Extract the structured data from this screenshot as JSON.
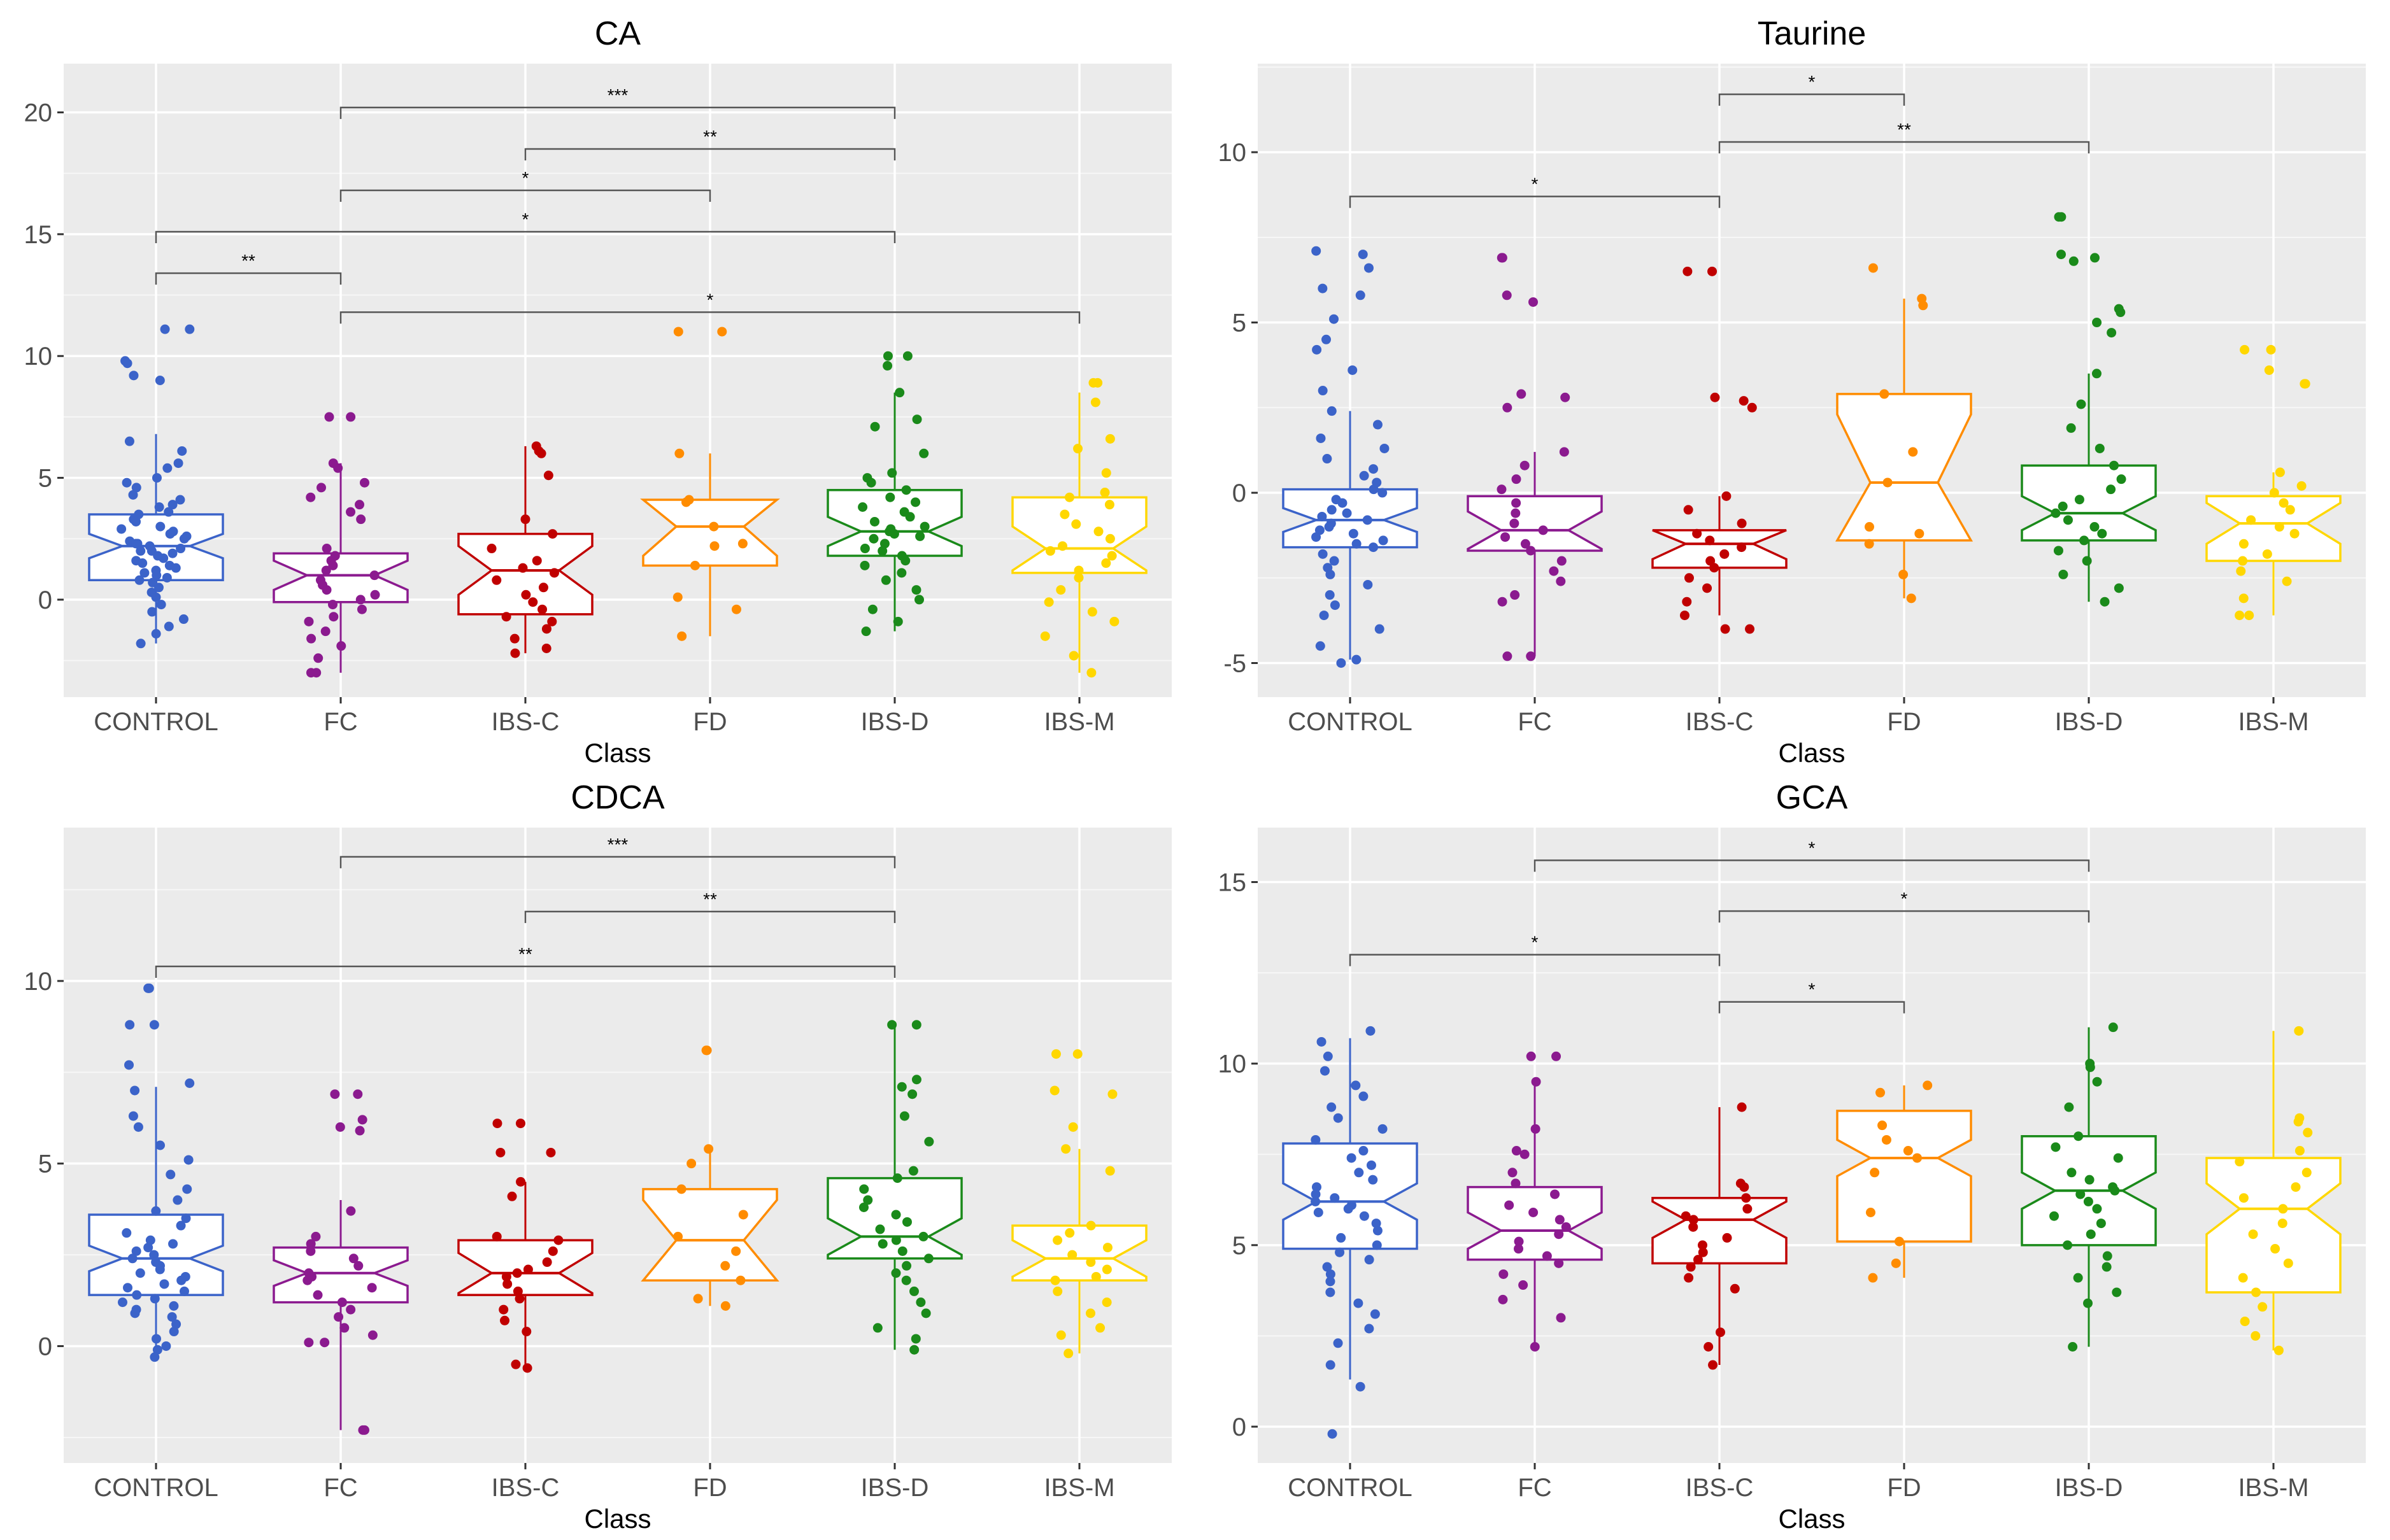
{
  "chart_data": [
    {
      "type": "box",
      "title": "CA",
      "xlabel": "Class",
      "ylabel": "",
      "categories": [
        "CONTROL",
        "FC",
        "IBS-C",
        "FD",
        "IBS-D",
        "IBS-M"
      ],
      "ylim": [
        -4,
        22
      ],
      "yticks": [
        0,
        5,
        10,
        15,
        20
      ],
      "yticks_labels": [
        "0",
        "5",
        "10",
        "15",
        "20"
      ],
      "grid": true,
      "colors": [
        "#3b63c9",
        "#8b1a8f",
        "#c00000",
        "#ff8c00",
        "#1a8a1a",
        "#ffd700"
      ],
      "boxes": [
        {
          "class": "CONTROL",
          "whisker_low": -1.8,
          "q1": 0.8,
          "median": 2.2,
          "q3": 3.5,
          "whisker_high": 6.8,
          "notch": 0.5
        },
        {
          "class": "FC",
          "whisker_low": -3.0,
          "q1": -0.1,
          "median": 1.0,
          "q3": 1.9,
          "whisker_high": 5.6,
          "notch": 0.6
        },
        {
          "class": "IBS-C",
          "whisker_low": -2.2,
          "q1": -0.6,
          "median": 1.2,
          "q3": 2.7,
          "whisker_high": 6.3,
          "notch": 1.0
        },
        {
          "class": "FD",
          "whisker_low": -1.5,
          "q1": 1.4,
          "median": 3.0,
          "q3": 4.1,
          "whisker_high": 6.0,
          "notch": 1.2
        },
        {
          "class": "IBS-D",
          "whisker_low": -1.3,
          "q1": 1.8,
          "median": 2.8,
          "q3": 4.5,
          "whisker_high": 8.5,
          "notch": 0.6
        },
        {
          "class": "IBS-M",
          "whisker_low": -3.0,
          "q1": 1.1,
          "median": 2.1,
          "q3": 4.2,
          "whisker_high": 8.5,
          "notch": 0.9
        }
      ],
      "points": [
        [
          11.1,
          11.1,
          9.8,
          9.7,
          9.2,
          9.0,
          6.5,
          6.1,
          5.6,
          5.4,
          5.0,
          4.8,
          4.6,
          4.3,
          4.1,
          3.9,
          3.8,
          3.6,
          3.5,
          3.3,
          3.2,
          3.0,
          2.9,
          2.8,
          2.7,
          2.6,
          2.5,
          2.4,
          2.3,
          2.3,
          2.2,
          2.1,
          2.0,
          2.0,
          1.9,
          1.8,
          1.7,
          1.6,
          1.5,
          1.4,
          1.3,
          1.2,
          1.1,
          1.0,
          0.9,
          0.8,
          0.7,
          0.5,
          0.3,
          0.1,
          -0.2,
          -0.5,
          -0.8,
          -1.1,
          -1.4,
          -1.8
        ],
        [
          7.5,
          7.5,
          5.6,
          5.4,
          4.8,
          4.6,
          4.2,
          3.9,
          3.6,
          3.3,
          2.1,
          1.8,
          1.6,
          1.4,
          1.2,
          1.0,
          0.8,
          0.6,
          0.4,
          0.2,
          0.0,
          -0.2,
          -0.4,
          -0.7,
          -0.9,
          -1.3,
          -1.6,
          -1.9,
          -2.4,
          -3.0,
          -3.0
        ],
        [
          6.3,
          6.1,
          6.0,
          5.1,
          3.3,
          2.7,
          2.1,
          1.6,
          1.3,
          1.1,
          0.8,
          0.5,
          0.2,
          -0.1,
          -0.4,
          -0.7,
          -0.9,
          -1.2,
          -1.6,
          -2.0,
          -2.2
        ],
        [
          11.0,
          11.0,
          6.0,
          4.1,
          4.0,
          3.0,
          2.3,
          2.2,
          1.4,
          0.1,
          -0.4,
          -1.5
        ],
        [
          10.0,
          10.0,
          9.6,
          8.5,
          7.4,
          7.1,
          6.0,
          5.2,
          5.0,
          4.8,
          4.5,
          4.2,
          4.0,
          3.8,
          3.6,
          3.4,
          3.2,
          3.0,
          2.9,
          2.8,
          2.7,
          2.6,
          2.5,
          2.3,
          2.1,
          2.0,
          1.8,
          1.6,
          1.4,
          1.1,
          0.8,
          0.4,
          0.0,
          -0.4,
          -0.9,
          -1.3
        ],
        [
          8.9,
          8.9,
          8.1,
          6.6,
          6.2,
          5.2,
          4.4,
          4.2,
          3.9,
          3.5,
          3.1,
          2.8,
          2.5,
          2.2,
          2.0,
          1.8,
          1.5,
          1.2,
          0.9,
          0.4,
          -0.1,
          -0.5,
          -0.9,
          -1.5,
          -2.3,
          -3.0
        ]
      ],
      "brackets": [
        {
          "from": "FC",
          "to": "IBS-D",
          "y": 20.2,
          "label": "***"
        },
        {
          "from": "IBS-C",
          "to": "IBS-D",
          "y": 18.5,
          "label": "**"
        },
        {
          "from": "FC",
          "to": "FD",
          "y": 16.8,
          "label": "*"
        },
        {
          "from": "CONTROL",
          "to": "IBS-D",
          "y": 15.1,
          "label": "*"
        },
        {
          "from": "CONTROL",
          "to": "FC",
          "y": 13.4,
          "label": "**"
        },
        {
          "from": "FC",
          "to": "IBS-M",
          "y": 11.8,
          "label": "*"
        }
      ]
    },
    {
      "type": "box",
      "title": "Taurine",
      "xlabel": "Class",
      "ylabel": "",
      "categories": [
        "CONTROL",
        "FC",
        "IBS-C",
        "FD",
        "IBS-D",
        "IBS-M"
      ],
      "ylim": [
        -6,
        12.6
      ],
      "yticks": [
        -5,
        0,
        5,
        10
      ],
      "yticks_labels": [
        "-5",
        "0",
        "5",
        "10"
      ],
      "grid": true,
      "colors": [
        "#3b63c9",
        "#8b1a8f",
        "#c00000",
        "#ff8c00",
        "#1a8a1a",
        "#ffd700"
      ],
      "boxes": [
        {
          "class": "CONTROL",
          "whisker_low": -4.9,
          "q1": -1.6,
          "median": -0.8,
          "q3": 0.1,
          "whisker_high": 2.4,
          "notch": 0.35
        },
        {
          "class": "FC",
          "whisker_low": -4.8,
          "q1": -1.7,
          "median": -1.1,
          "q3": -0.1,
          "whisker_high": 1.2,
          "notch": 0.55
        },
        {
          "class": "IBS-C",
          "whisker_low": -3.6,
          "q1": -2.2,
          "median": -1.5,
          "q3": -1.1,
          "whisker_high": -0.1,
          "notch": 0.45
        },
        {
          "class": "FD",
          "whisker_low": -3.1,
          "q1": -1.4,
          "median": 0.3,
          "q3": 2.9,
          "whisker_high": 5.7,
          "notch": 2.0
        },
        {
          "class": "IBS-D",
          "whisker_low": -3.2,
          "q1": -1.4,
          "median": -0.6,
          "q3": 0.8,
          "whisker_high": 3.5,
          "notch": 0.5
        },
        {
          "class": "IBS-M",
          "whisker_low": -3.6,
          "q1": -2.0,
          "median": -0.9,
          "q3": -0.1,
          "whisker_high": 0.6,
          "notch": 0.6
        }
      ],
      "points": [
        [
          7.1,
          7.0,
          6.6,
          6.0,
          5.8,
          5.1,
          4.5,
          4.2,
          3.6,
          3.0,
          2.4,
          2.0,
          1.6,
          1.3,
          1.0,
          0.7,
          0.5,
          0.3,
          0.1,
          0.0,
          -0.2,
          -0.3,
          -0.5,
          -0.6,
          -0.7,
          -0.8,
          -0.9,
          -1.0,
          -1.1,
          -1.2,
          -1.3,
          -1.4,
          -1.5,
          -1.6,
          -1.8,
          -2.0,
          -2.2,
          -2.4,
          -2.7,
          -3.0,
          -3.3,
          -3.6,
          -4.0,
          -4.5,
          -4.9,
          -5.0
        ],
        [
          6.9,
          6.9,
          5.8,
          5.6,
          2.9,
          2.8,
          2.5,
          1.2,
          0.8,
          0.4,
          0.1,
          -0.3,
          -0.6,
          -0.9,
          -1.1,
          -1.3,
          -1.5,
          -1.7,
          -2.0,
          -2.3,
          -2.6,
          -3.0,
          -3.2,
          -4.8,
          -4.8
        ],
        [
          6.5,
          6.5,
          2.8,
          2.7,
          2.5,
          -0.1,
          -0.5,
          -0.9,
          -1.2,
          -1.4,
          -1.6,
          -1.8,
          -2.0,
          -2.2,
          -2.5,
          -2.8,
          -3.2,
          -3.6,
          -4.0,
          -4.0
        ],
        [
          6.6,
          5.7,
          5.5,
          2.9,
          1.2,
          0.3,
          -1.0,
          -1.2,
          -1.5,
          -2.4,
          -3.1
        ],
        [
          8.1,
          8.1,
          7.0,
          6.9,
          6.8,
          5.4,
          5.3,
          5.0,
          4.7,
          3.5,
          2.6,
          1.9,
          1.3,
          0.8,
          0.4,
          0.1,
          -0.2,
          -0.4,
          -0.6,
          -0.8,
          -1.0,
          -1.2,
          -1.4,
          -1.7,
          -2.0,
          -2.4,
          -2.8,
          -3.2
        ],
        [
          4.2,
          4.2,
          3.6,
          3.2,
          3.2,
          0.6,
          0.2,
          0.0,
          -0.3,
          -0.5,
          -0.8,
          -1.0,
          -1.2,
          -1.5,
          -1.8,
          -2.0,
          -2.3,
          -2.6,
          -3.1,
          -3.6,
          -3.6
        ]
      ],
      "brackets": [
        {
          "from": "IBS-C",
          "to": "FD",
          "y": 11.7,
          "label": "*"
        },
        {
          "from": "IBS-C",
          "to": "IBS-D",
          "y": 10.3,
          "label": "**"
        },
        {
          "from": "CONTROL",
          "to": "IBS-C",
          "y": 8.7,
          "label": "*"
        }
      ]
    },
    {
      "type": "box",
      "title": "CDCA",
      "xlabel": "Class",
      "ylabel": "",
      "categories": [
        "CONTROL",
        "FC",
        "IBS-C",
        "FD",
        "IBS-D",
        "IBS-M"
      ],
      "ylim": [
        -3.2,
        14.2
      ],
      "yticks": [
        0,
        5,
        10
      ],
      "yticks_labels": [
        "0",
        "5",
        "10"
      ],
      "grid": true,
      "colors": [
        "#3b63c9",
        "#8b1a8f",
        "#c00000",
        "#ff8c00",
        "#1a8a1a",
        "#ffd700"
      ],
      "boxes": [
        {
          "class": "CONTROL",
          "whisker_low": -0.3,
          "q1": 1.4,
          "median": 2.4,
          "q3": 3.6,
          "whisker_high": 7.1,
          "notch": 0.35
        },
        {
          "class": "FC",
          "whisker_low": -2.3,
          "q1": 1.2,
          "median": 2.0,
          "q3": 2.7,
          "whisker_high": 4.0,
          "notch": 0.35
        },
        {
          "class": "IBS-C",
          "whisker_low": -0.6,
          "q1": 1.4,
          "median": 2.0,
          "q3": 2.9,
          "whisker_high": 4.5,
          "notch": 0.55
        },
        {
          "class": "FD",
          "whisker_low": 1.1,
          "q1": 1.8,
          "median": 2.9,
          "q3": 4.3,
          "whisker_high": 5.4,
          "notch": 1.1
        },
        {
          "class": "IBS-D",
          "whisker_low": -0.1,
          "q1": 2.4,
          "median": 3.0,
          "q3": 4.6,
          "whisker_high": 8.8,
          "notch": 0.5
        },
        {
          "class": "IBS-M",
          "whisker_low": -0.2,
          "q1": 1.8,
          "median": 2.4,
          "q3": 3.3,
          "whisker_high": 5.4,
          "notch": 0.5
        }
      ],
      "points": [
        [
          9.8,
          9.8,
          8.8,
          8.8,
          7.7,
          7.2,
          7.0,
          6.3,
          6.0,
          5.5,
          5.1,
          4.7,
          4.3,
          4.0,
          3.7,
          3.5,
          3.3,
          3.1,
          2.9,
          2.8,
          2.7,
          2.6,
          2.5,
          2.4,
          2.3,
          2.2,
          2.1,
          2.0,
          1.9,
          1.8,
          1.7,
          1.6,
          1.5,
          1.4,
          1.3,
          1.2,
          1.1,
          1.0,
          0.9,
          0.8,
          0.6,
          0.4,
          0.2,
          0.0,
          -0.1,
          -0.3
        ],
        [
          6.9,
          6.9,
          6.2,
          6.0,
          5.9,
          3.7,
          3.0,
          2.8,
          2.6,
          2.4,
          2.2,
          2.0,
          1.9,
          1.8,
          1.6,
          1.4,
          1.2,
          1.0,
          0.8,
          0.5,
          0.3,
          0.1,
          0.1,
          -2.3,
          -2.3
        ],
        [
          6.1,
          6.1,
          5.3,
          5.3,
          4.5,
          4.1,
          3.0,
          2.9,
          2.6,
          2.3,
          2.1,
          2.0,
          1.9,
          1.7,
          1.5,
          1.3,
          1.0,
          0.7,
          0.4,
          -0.5,
          -0.6
        ],
        [
          8.1,
          8.1,
          5.4,
          5.0,
          4.3,
          3.6,
          3.0,
          2.6,
          2.2,
          1.8,
          1.3,
          1.1
        ],
        [
          8.8,
          8.8,
          7.3,
          7.1,
          6.9,
          6.3,
          5.6,
          4.8,
          4.6,
          4.3,
          4.0,
          3.8,
          3.6,
          3.4,
          3.2,
          3.0,
          2.9,
          2.8,
          2.6,
          2.4,
          2.2,
          2.0,
          1.8,
          1.5,
          1.2,
          0.9,
          0.5,
          0.2,
          -0.1
        ],
        [
          8.0,
          8.0,
          7.0,
          6.9,
          6.0,
          5.4,
          4.8,
          3.3,
          3.1,
          2.9,
          2.7,
          2.5,
          2.3,
          2.1,
          1.9,
          1.8,
          1.5,
          1.2,
          0.9,
          0.5,
          0.3,
          -0.2
        ]
      ],
      "brackets": [
        {
          "from": "FC",
          "to": "IBS-D",
          "y": 13.4,
          "label": "***"
        },
        {
          "from": "IBS-C",
          "to": "IBS-D",
          "y": 11.9,
          "label": "**"
        },
        {
          "from": "CONTROL",
          "to": "IBS-D",
          "y": 10.4,
          "label": "**"
        }
      ]
    },
    {
      "type": "box",
      "title": "GCA",
      "xlabel": "Class",
      "ylabel": "",
      "categories": [
        "CONTROL",
        "FC",
        "IBS-C",
        "FD",
        "IBS-D",
        "IBS-M"
      ],
      "ylim": [
        -1.0,
        16.5
      ],
      "yticks": [
        0,
        5,
        10,
        15
      ],
      "yticks_labels": [
        "0",
        "5",
        "10",
        "15"
      ],
      "grid": true,
      "colors": [
        "#3b63c9",
        "#8b1a8f",
        "#c00000",
        "#ff8c00",
        "#1a8a1a",
        "#ffd700"
      ],
      "boxes": [
        {
          "class": "CONTROL",
          "whisker_low": 1.3,
          "q1": 4.9,
          "median": 6.2,
          "q3": 7.8,
          "whisker_high": 10.7,
          "notch": 0.5
        },
        {
          "class": "FC",
          "whisker_low": 2.2,
          "q1": 4.6,
          "median": 5.4,
          "q3": 6.6,
          "whisker_high": 9.5,
          "notch": 0.5
        },
        {
          "class": "IBS-C",
          "whisker_low": 1.7,
          "q1": 4.5,
          "median": 5.7,
          "q3": 6.3,
          "whisker_high": 8.8,
          "notch": 0.5
        },
        {
          "class": "FD",
          "whisker_low": 4.1,
          "q1": 5.1,
          "median": 7.4,
          "q3": 8.7,
          "whisker_high": 9.4,
          "notch": 0.5
        },
        {
          "class": "IBS-D",
          "whisker_low": 2.2,
          "q1": 5.0,
          "median": 6.5,
          "q3": 8.0,
          "whisker_high": 11.0,
          "notch": 0.5
        },
        {
          "class": "IBS-M",
          "whisker_low": 2.1,
          "q1": 3.7,
          "median": 6.0,
          "q3": 7.4,
          "whisker_high": 10.9,
          "notch": 0.7
        }
      ],
      "points": [
        [
          10.9,
          10.6,
          10.2,
          9.8,
          9.4,
          9.1,
          8.8,
          8.5,
          8.2,
          7.9,
          7.6,
          7.4,
          7.2,
          7.0,
          6.8,
          6.6,
          6.4,
          6.3,
          6.2,
          6.1,
          6.0,
          5.9,
          5.8,
          5.6,
          5.4,
          5.2,
          5.0,
          4.8,
          4.6,
          4.4,
          4.2,
          4.0,
          3.7,
          3.4,
          3.1,
          2.7,
          2.3,
          1.7,
          1.1,
          -0.2
        ],
        [
          10.2,
          10.2,
          9.5,
          8.2,
          7.6,
          7.5,
          7.0,
          6.7,
          6.4,
          6.1,
          5.9,
          5.7,
          5.5,
          5.3,
          5.1,
          4.9,
          4.7,
          4.5,
          4.2,
          3.9,
          3.5,
          3.0,
          2.2
        ],
        [
          8.8,
          6.7,
          6.6,
          6.3,
          6.0,
          5.8,
          5.7,
          5.5,
          5.2,
          5.0,
          4.8,
          4.6,
          4.4,
          4.1,
          3.8,
          2.6,
          2.2,
          1.7
        ],
        [
          9.4,
          9.2,
          8.3,
          7.9,
          7.6,
          7.4,
          7.0,
          5.9,
          5.1,
          4.5,
          4.1
        ],
        [
          11.0,
          10.0,
          9.9,
          9.5,
          8.8,
          8.0,
          7.7,
          7.4,
          7.0,
          6.8,
          6.6,
          6.5,
          6.4,
          6.2,
          6.0,
          5.8,
          5.6,
          5.3,
          5.0,
          4.7,
          4.4,
          4.1,
          3.7,
          3.4,
          2.2
        ],
        [
          10.9,
          8.5,
          8.4,
          8.1,
          7.6,
          7.3,
          7.0,
          6.6,
          6.3,
          6.0,
          5.6,
          5.3,
          4.9,
          4.5,
          4.1,
          3.7,
          3.3,
          2.9,
          2.5,
          2.1
        ]
      ],
      "brackets": [
        {
          "from": "FC",
          "to": "IBS-D",
          "y": 15.6,
          "label": "*"
        },
        {
          "from": "IBS-C",
          "to": "IBS-D",
          "y": 14.2,
          "label": "*"
        },
        {
          "from": "CONTROL",
          "to": "IBS-C",
          "y": 13.0,
          "label": "*"
        },
        {
          "from": "IBS-C",
          "to": "FD",
          "y": 11.7,
          "label": "*"
        }
      ]
    }
  ]
}
